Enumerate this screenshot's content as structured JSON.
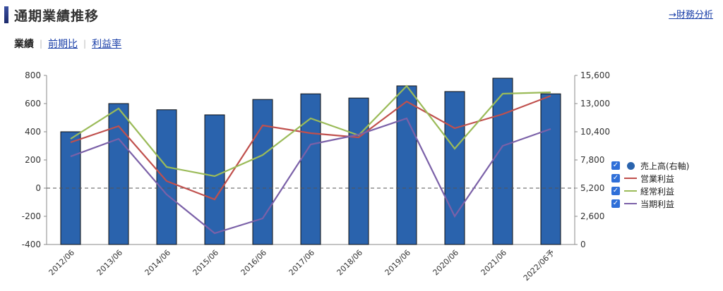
{
  "header": {
    "title": "通期業績推移",
    "link_label": "→財務分析"
  },
  "tabs": [
    {
      "label": "業績",
      "active": true
    },
    {
      "label": "前期比",
      "active": false
    },
    {
      "label": "利益率",
      "active": false
    }
  ],
  "legend": [
    {
      "label": "売上高(右軸)",
      "color": "#2a63ad",
      "kind": "dot"
    },
    {
      "label": "営業利益",
      "color": "#c0504d",
      "kind": "line"
    },
    {
      "label": "経常利益",
      "color": "#9bbb59",
      "kind": "line"
    },
    {
      "label": "当期利益",
      "color": "#7b61a8",
      "kind": "line"
    }
  ],
  "chart_data": {
    "type": "bar",
    "categories": [
      "2012/06",
      "2013/06",
      "2014/06",
      "2015/06",
      "2016/06",
      "2017/06",
      "2018/06",
      "2019/06",
      "2020/06",
      "2021/06",
      "2022/06予"
    ],
    "left_axis": {
      "ylim": [
        -400,
        800
      ],
      "ticks": [
        "800",
        "600",
        "400",
        "200",
        "0",
        "-200",
        "-400"
      ]
    },
    "right_axis": {
      "ylim": [
        0,
        15600
      ],
      "ticks": [
        "15,600",
        "13,000",
        "10,400",
        "7,800",
        "5,200",
        "2,600",
        "0"
      ]
    },
    "grid": false,
    "legend_position": "right",
    "series": [
      {
        "name": "売上高(右軸)",
        "type": "bar",
        "axis": "right",
        "color": "#2a63ad",
        "values": [
          10400,
          13000,
          12430,
          11960,
          13380,
          13900,
          13510,
          14630,
          14110,
          15340,
          13900
        ]
      },
      {
        "name": "営業利益",
        "type": "line",
        "axis": "left",
        "color": "#c0504d",
        "values": [
          325,
          440,
          50,
          -80,
          445,
          390,
          360,
          615,
          425,
          525,
          655
        ]
      },
      {
        "name": "経常利益",
        "type": "line",
        "axis": "left",
        "color": "#9bbb59",
        "values": [
          350,
          565,
          150,
          85,
          235,
          495,
          375,
          725,
          280,
          670,
          680
        ]
      },
      {
        "name": "当期利益",
        "type": "line",
        "axis": "left",
        "color": "#7b61a8",
        "values": [
          225,
          350,
          -45,
          -320,
          -215,
          310,
          380,
          495,
          -200,
          300,
          420
        ]
      }
    ]
  }
}
